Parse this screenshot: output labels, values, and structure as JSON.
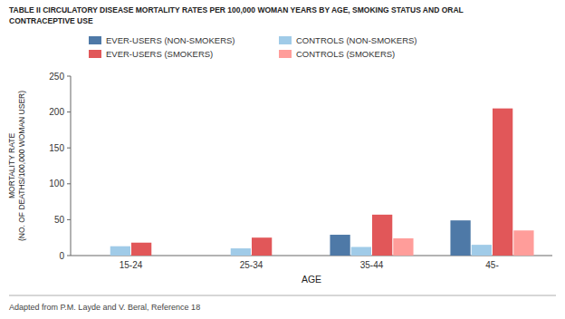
{
  "chart_data": {
    "type": "bar",
    "title": "TABLE II CIRCULATORY DISEASE MORTALITY RATES PER 100,000 WOMAN YEARS BY AGE, SMOKING STATUS AND ORAL\nCONTRACEPTIVE USE",
    "categories": [
      "15-24",
      "25-34",
      "35-44",
      "45-"
    ],
    "series": [
      {
        "name": "EVER-USERS (NON-SMOKERS)",
        "color": "#4e79a7",
        "values": [
          0,
          0,
          29,
          49
        ]
      },
      {
        "name": "CONTROLS (NON-SMOKERS)",
        "color": "#a0cbe8",
        "values": [
          13,
          10,
          12,
          15
        ]
      },
      {
        "name": "EVER-USERS (SMOKERS)",
        "color": "#e15759",
        "values": [
          18,
          25,
          57,
          205
        ]
      },
      {
        "name": "CONTROLS (SMOKERS)",
        "color": "#ff9d9a",
        "values": [
          0,
          0,
          24,
          35
        ]
      }
    ],
    "ylabel": "MORTALITY RATE\n(NO. OF DEATHS/100,000 WOMAN USER)",
    "xlabel": "AGE",
    "ylim": [
      0,
      250
    ],
    "yticks": [
      0,
      50,
      100,
      150,
      200,
      250
    ],
    "grid": false,
    "legend": "top",
    "footnote": "Adapted from P.M. Layde and V. Beral, Reference 18"
  }
}
